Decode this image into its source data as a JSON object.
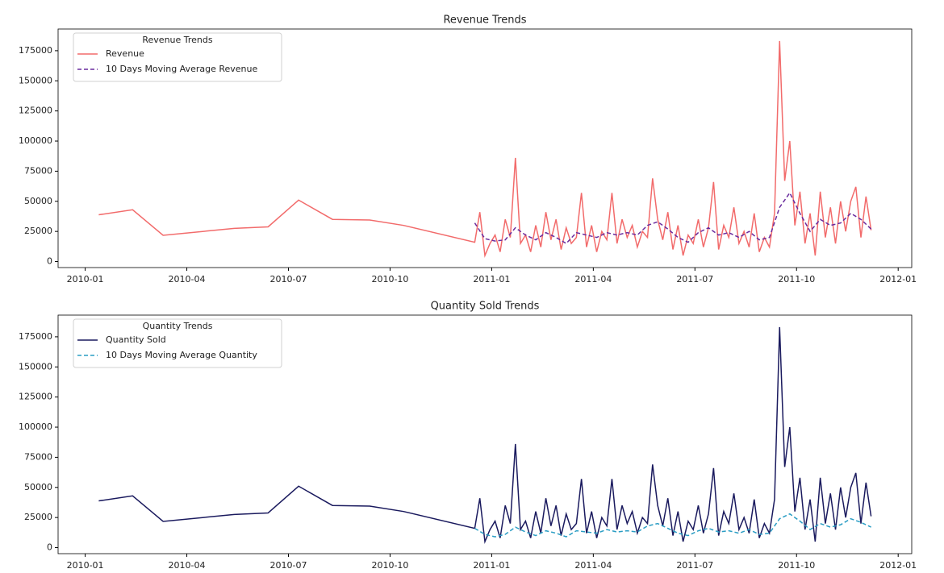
{
  "chart_data": [
    {
      "type": "line",
      "title": "Revenue Trends",
      "legend_title": "Revenue Trends",
      "legend": "upper left",
      "xlim": [
        -0.8,
        24.4
      ],
      "xticks": [
        {
          "value": 0,
          "label": "2010-01"
        },
        {
          "value": 3,
          "label": "2010-04"
        },
        {
          "value": 6,
          "label": "2010-07"
        },
        {
          "value": 9,
          "label": "2010-10"
        },
        {
          "value": 12,
          "label": "2011-01"
        },
        {
          "value": 15,
          "label": "2011-04"
        },
        {
          "value": 18,
          "label": "2011-07"
        },
        {
          "value": 21,
          "label": "2011-10"
        },
        {
          "value": 24,
          "label": "2012-01"
        }
      ],
      "ylim": [
        -5000,
        193000
      ],
      "yticks": [
        0,
        25000,
        50000,
        75000,
        100000,
        125000,
        150000,
        175000
      ],
      "series": [
        {
          "name": "Revenue",
          "color": "#f26b6b",
          "linestyle": "-",
          "x": [
            0.4,
            1.4,
            2.3,
            4.4,
            5.4,
            6.3,
            7.3,
            8.4,
            9.4,
            11.5,
            11.65,
            11.8,
            11.95,
            12.1,
            12.25,
            12.4,
            12.55,
            12.7,
            12.85,
            13.0,
            13.15,
            13.3,
            13.45,
            13.6,
            13.75,
            13.9,
            14.05,
            14.2,
            14.35,
            14.5,
            14.65,
            14.8,
            14.95,
            15.1,
            15.25,
            15.4,
            15.55,
            15.7,
            15.85,
            16.0,
            16.15,
            16.3,
            16.45,
            16.6,
            16.75,
            16.9,
            17.05,
            17.2,
            17.35,
            17.5,
            17.65,
            17.8,
            17.95,
            18.1,
            18.25,
            18.4,
            18.55,
            18.7,
            18.85,
            19.0,
            19.15,
            19.3,
            19.45,
            19.6,
            19.75,
            19.9,
            20.05,
            20.2,
            20.35,
            20.5,
            20.65,
            20.8,
            20.95,
            21.1,
            21.25,
            21.4,
            21.55,
            21.7,
            21.85,
            22.0,
            22.15,
            22.3,
            22.45,
            22.6,
            22.75,
            22.9,
            23.05,
            23.2
          ],
          "values": [
            38800,
            43000,
            21800,
            27500,
            28800,
            51000,
            35000,
            34500,
            30000,
            16000,
            41000,
            5000,
            15000,
            22000,
            8000,
            35000,
            20000,
            86000,
            15000,
            22000,
            8000,
            30000,
            12000,
            41000,
            18000,
            35000,
            10000,
            28000,
            15000,
            20000,
            57000,
            12000,
            30000,
            8000,
            25000,
            18000,
            57000,
            15000,
            35000,
            20000,
            30000,
            12000,
            25000,
            20000,
            69000,
            35000,
            18000,
            41000,
            10000,
            30000,
            5000,
            22000,
            15000,
            35000,
            12000,
            28000,
            66000,
            10000,
            30000,
            20000,
            45000,
            15000,
            25000,
            12000,
            40000,
            8000,
            20000,
            12000,
            40000,
            183000,
            67000,
            100000,
            30000,
            58000,
            15000,
            40000,
            5000,
            58000,
            20000,
            45000,
            15000,
            50000,
            25000,
            50000,
            62000,
            20000,
            54000,
            26000
          ]
        },
        {
          "name": "10 Days Moving Average Revenue",
          "color": "#6a2c9e",
          "linestyle": "--",
          "x": [
            11.5,
            11.8,
            12.1,
            12.4,
            12.7,
            13.0,
            13.3,
            13.6,
            13.9,
            14.2,
            14.5,
            14.8,
            15.1,
            15.4,
            15.7,
            16.0,
            16.3,
            16.6,
            16.9,
            17.2,
            17.5,
            17.8,
            18.1,
            18.4,
            18.7,
            19.0,
            19.3,
            19.6,
            19.9,
            20.2,
            20.5,
            20.8,
            21.1,
            21.4,
            21.7,
            22.0,
            22.3,
            22.6,
            22.9,
            23.2
          ],
          "values": [
            32000,
            19000,
            17000,
            18000,
            28000,
            22000,
            18000,
            24000,
            20000,
            15000,
            24000,
            22000,
            20000,
            24000,
            22000,
            24000,
            22000,
            30000,
            33000,
            27000,
            20000,
            16000,
            24000,
            28000,
            22000,
            24000,
            20000,
            25000,
            18000,
            20000,
            45000,
            57000,
            40000,
            25000,
            35000,
            30000,
            32000,
            40000,
            35000,
            27000
          ]
        }
      ]
    },
    {
      "type": "line",
      "title": "Quantity Sold Trends",
      "legend_title": "Quantity Trends",
      "legend": "upper left",
      "xlim": [
        -0.8,
        24.4
      ],
      "xticks": [
        {
          "value": 0,
          "label": "2010-01"
        },
        {
          "value": 3,
          "label": "2010-04"
        },
        {
          "value": 6,
          "label": "2010-07"
        },
        {
          "value": 9,
          "label": "2010-10"
        },
        {
          "value": 12,
          "label": "2011-01"
        },
        {
          "value": 15,
          "label": "2011-04"
        },
        {
          "value": 18,
          "label": "2011-07"
        },
        {
          "value": 21,
          "label": "2011-10"
        },
        {
          "value": 24,
          "label": "2012-01"
        }
      ],
      "ylim": [
        -5000,
        193000
      ],
      "yticks": [
        0,
        25000,
        50000,
        75000,
        100000,
        125000,
        150000,
        175000
      ],
      "series": [
        {
          "name": "Quantity Sold",
          "color": "#1a1a5e",
          "linestyle": "-",
          "x": [
            0.4,
            1.4,
            2.3,
            4.4,
            5.4,
            6.3,
            7.3,
            8.4,
            9.4,
            11.5,
            11.65,
            11.8,
            11.95,
            12.1,
            12.25,
            12.4,
            12.55,
            12.7,
            12.85,
            13.0,
            13.15,
            13.3,
            13.45,
            13.6,
            13.75,
            13.9,
            14.05,
            14.2,
            14.35,
            14.5,
            14.65,
            14.8,
            14.95,
            15.1,
            15.25,
            15.4,
            15.55,
            15.7,
            15.85,
            16.0,
            16.15,
            16.3,
            16.45,
            16.6,
            16.75,
            16.9,
            17.05,
            17.2,
            17.35,
            17.5,
            17.65,
            17.8,
            17.95,
            18.1,
            18.25,
            18.4,
            18.55,
            18.7,
            18.85,
            19.0,
            19.15,
            19.3,
            19.45,
            19.6,
            19.75,
            19.9,
            20.05,
            20.2,
            20.35,
            20.5,
            20.65,
            20.8,
            20.95,
            21.1,
            21.25,
            21.4,
            21.55,
            21.7,
            21.85,
            22.0,
            22.15,
            22.3,
            22.45,
            22.6,
            22.75,
            22.9,
            23.05,
            23.2
          ],
          "values": [
            38800,
            43000,
            21800,
            27500,
            28800,
            51000,
            35000,
            34500,
            30000,
            16000,
            41000,
            5000,
            15000,
            22000,
            8000,
            35000,
            20000,
            86000,
            15000,
            22000,
            8000,
            30000,
            12000,
            41000,
            18000,
            35000,
            10000,
            28000,
            15000,
            20000,
            57000,
            12000,
            30000,
            8000,
            25000,
            18000,
            57000,
            15000,
            35000,
            20000,
            30000,
            12000,
            25000,
            20000,
            69000,
            35000,
            18000,
            41000,
            10000,
            30000,
            5000,
            22000,
            15000,
            35000,
            12000,
            28000,
            66000,
            10000,
            30000,
            20000,
            45000,
            15000,
            25000,
            12000,
            40000,
            8000,
            20000,
            12000,
            40000,
            183000,
            67000,
            100000,
            30000,
            58000,
            15000,
            40000,
            5000,
            58000,
            20000,
            45000,
            15000,
            50000,
            25000,
            50000,
            62000,
            20000,
            54000,
            26000
          ]
        },
        {
          "name": "10 Days Moving Average Quantity",
          "color": "#2a9dc4",
          "linestyle": "--",
          "x": [
            11.5,
            11.8,
            12.1,
            12.4,
            12.7,
            13.0,
            13.3,
            13.6,
            13.9,
            14.2,
            14.5,
            14.8,
            15.1,
            15.4,
            15.7,
            16.0,
            16.3,
            16.6,
            16.9,
            17.2,
            17.5,
            17.8,
            18.1,
            18.4,
            18.7,
            19.0,
            19.3,
            19.6,
            19.9,
            20.2,
            20.5,
            20.8,
            21.1,
            21.4,
            21.7,
            22.0,
            22.3,
            22.6,
            22.9,
            23.2
          ],
          "values": [
            16000,
            11000,
            9000,
            11000,
            17000,
            13000,
            10000,
            14000,
            12000,
            9000,
            14000,
            13000,
            12000,
            15000,
            13000,
            14000,
            13000,
            18000,
            20000,
            16000,
            12000,
            10000,
            14000,
            16000,
            13000,
            14000,
            12000,
            15000,
            11000,
            12000,
            24000,
            28000,
            22000,
            15000,
            20000,
            17000,
            19000,
            24000,
            21000,
            17000
          ]
        }
      ]
    }
  ]
}
